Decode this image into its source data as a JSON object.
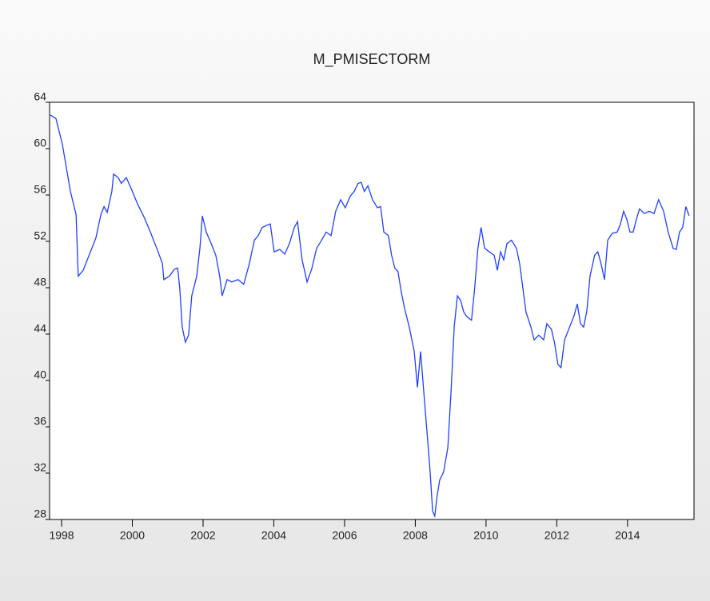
{
  "chart_data": {
    "type": "line",
    "title": "M_PMISECTORM",
    "x": [
      1997.68,
      1997.84,
      1998.02,
      1998.25,
      1998.41,
      1998.47,
      1998.61,
      1998.79,
      1998.97,
      1999.11,
      1999.2,
      1999.29,
      1999.42,
      1999.47,
      1999.6,
      1999.69,
      1999.83,
      1999.99,
      2000.15,
      2000.33,
      2000.51,
      2000.69,
      2000.85,
      2000.89,
      2001.05,
      2001.19,
      2001.28,
      2001.34,
      2001.41,
      2001.5,
      2001.59,
      2001.68,
      2001.82,
      2001.91,
      2001.98,
      2002.09,
      2002.23,
      2002.36,
      2002.47,
      2002.54,
      2002.68,
      2002.81,
      2002.99,
      2003.15,
      2003.31,
      2003.45,
      2003.56,
      2003.67,
      2003.81,
      2003.9,
      2004.01,
      2004.17,
      2004.31,
      2004.44,
      2004.58,
      2004.67,
      2004.8,
      2004.94,
      2005.07,
      2005.21,
      2005.35,
      2005.48,
      2005.62,
      2005.75,
      2005.89,
      2006.02,
      2006.16,
      2006.27,
      2006.38,
      2006.47,
      2006.56,
      2006.66,
      2006.79,
      2006.93,
      2007.02,
      2007.11,
      2007.24,
      2007.33,
      2007.42,
      2007.51,
      2007.6,
      2007.69,
      2007.83,
      2007.97,
      2008.06,
      2008.15,
      2008.24,
      2008.33,
      2008.42,
      2008.49,
      2008.55,
      2008.62,
      2008.69,
      2008.8,
      2008.92,
      2009.01,
      2009.1,
      2009.19,
      2009.28,
      2009.37,
      2009.46,
      2009.59,
      2009.68,
      2009.77,
      2009.86,
      2009.96,
      2010.09,
      2010.23,
      2010.32,
      2010.41,
      2010.5,
      2010.59,
      2010.72,
      2010.86,
      2010.95,
      2011.04,
      2011.13,
      2011.27,
      2011.36,
      2011.49,
      2011.63,
      2011.72,
      2011.85,
      2011.94,
      2012.03,
      2012.12,
      2012.22,
      2012.31,
      2012.4,
      2012.49,
      2012.58,
      2012.67,
      2012.76,
      2012.85,
      2012.94,
      2013.07,
      2013.16,
      2013.25,
      2013.35,
      2013.44,
      2013.57,
      2013.71,
      2013.8,
      2013.89,
      2013.98,
      2014.07,
      2014.16,
      2014.25,
      2014.34,
      2014.48,
      2014.61,
      2014.75,
      2014.88,
      2015.02,
      2015.15,
      2015.29,
      2015.38,
      2015.47,
      2015.56,
      2015.65,
      2015.74
    ],
    "series": [
      {
        "name": "M_PMISECTORM",
        "color": "#1f3fff",
        "values": [
          62.9,
          62.6,
          60.4,
          56.3,
          54.3,
          49.0,
          49.5,
          50.9,
          52.3,
          54.3,
          55.0,
          54.5,
          56.3,
          57.8,
          57.5,
          57.0,
          57.5,
          56.4,
          55.2,
          54.1,
          52.8,
          51.4,
          50.1,
          48.7,
          49.0,
          49.6,
          49.7,
          48.0,
          44.6,
          43.3,
          43.9,
          47.3,
          49.0,
          51.4,
          54.2,
          52.8,
          51.8,
          50.8,
          49.0,
          47.3,
          48.7,
          48.5,
          48.7,
          48.3,
          50.1,
          52.1,
          52.5,
          53.2,
          53.4,
          53.5,
          51.1,
          51.3,
          50.9,
          51.8,
          53.2,
          53.7,
          50.4,
          48.5,
          49.6,
          51.4,
          52.1,
          52.8,
          52.5,
          54.6,
          55.6,
          54.9,
          55.9,
          56.3,
          57.0,
          57.1,
          56.3,
          56.8,
          55.6,
          54.9,
          55.0,
          52.8,
          52.5,
          50.8,
          49.7,
          49.4,
          47.7,
          46.3,
          44.6,
          42.5,
          39.4,
          42.5,
          39.0,
          35.6,
          32.1,
          28.7,
          28.3,
          30.1,
          31.4,
          32.1,
          34.2,
          39.0,
          44.6,
          47.3,
          46.9,
          45.9,
          45.5,
          45.2,
          48.0,
          51.4,
          53.2,
          51.4,
          51.1,
          50.8,
          49.5,
          51.1,
          50.4,
          51.8,
          52.1,
          51.4,
          50.1,
          48.0,
          45.9,
          44.6,
          43.5,
          43.9,
          43.5,
          44.9,
          44.4,
          43.2,
          41.4,
          41.1,
          43.5,
          44.2,
          44.9,
          45.6,
          46.6,
          44.9,
          44.6,
          46.0,
          49.0,
          50.8,
          51.1,
          50.1,
          48.7,
          52.1,
          52.7,
          52.8,
          53.5,
          54.6,
          53.9,
          52.8,
          52.8,
          53.9,
          54.8,
          54.4,
          54.6,
          54.4,
          55.6,
          54.6,
          52.8,
          51.4,
          51.3,
          52.8,
          53.2,
          55.0,
          54.2
        ]
      }
    ],
    "xlim": [
      1997.66,
      2015.88
    ],
    "xticks": [
      1998,
      2000,
      2002,
      2004,
      2006,
      2008,
      2010,
      2012,
      2014
    ],
    "ylim": [
      28,
      64
    ],
    "yticks": [
      28,
      32,
      36,
      40,
      44,
      48,
      52,
      56,
      60,
      64
    ]
  }
}
